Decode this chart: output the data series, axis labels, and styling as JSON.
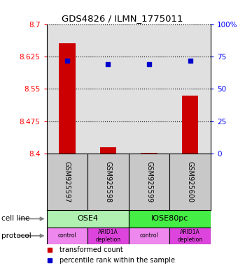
{
  "title": "GDS4826 / ILMN_1775011",
  "samples": [
    "GSM925597",
    "GSM925598",
    "GSM925599",
    "GSM925600"
  ],
  "red_values": [
    8.655,
    8.415,
    8.402,
    8.535
  ],
  "blue_values": [
    72,
    69,
    69,
    72
  ],
  "ylim_left": [
    8.4,
    8.7
  ],
  "ylim_right": [
    0,
    100
  ],
  "yticks_left": [
    8.4,
    8.475,
    8.55,
    8.625,
    8.7
  ],
  "ytick_labels_left": [
    "8.4",
    "8.475",
    "8.55",
    "8.625",
    "8.7"
  ],
  "yticks_right": [
    0,
    25,
    50,
    75,
    100
  ],
  "ytick_labels_right": [
    "0",
    "25",
    "50",
    "75",
    "100%"
  ],
  "cell_line_labels": [
    "OSE4",
    "IOSE80pc"
  ],
  "cell_line_colors": [
    "#b0f0b0",
    "#44ee44"
  ],
  "protocol_labels": [
    "control",
    "ARID1A\ndepletion",
    "control",
    "ARID1A\ndepletion"
  ],
  "protocol_colors": [
    "#ee88ee",
    "#dd44dd",
    "#ee88ee",
    "#dd44dd"
  ],
  "sample_bg_color": "#c8c8c8",
  "bar_color": "#cc0000",
  "dot_color": "#0000cc",
  "plot_bg_color": "#e0e0e0",
  "background_color": "#ffffff",
  "legend_red": "transformed count",
  "legend_blue": "percentile rank within the sample",
  "cell_line_label": "cell line",
  "protocol_label": "protocol"
}
